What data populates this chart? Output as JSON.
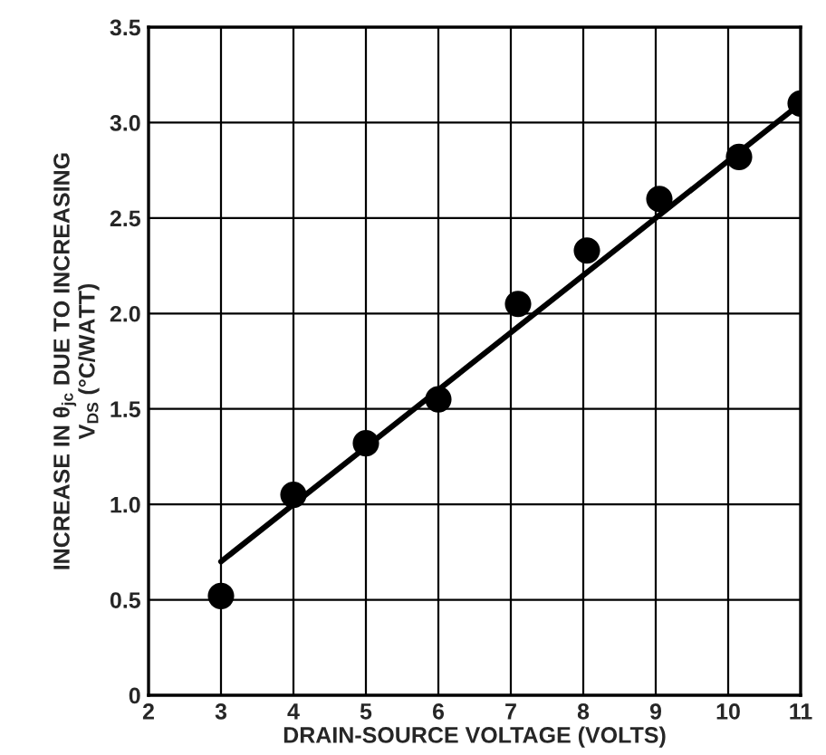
{
  "chart_data": {
    "type": "scatter",
    "xlabel": "DRAIN-SOURCE VOLTAGE (VOLTS)",
    "ylabel": "INCREASE IN θ$_{jc}$ DUE TO INCREASING\nV$_{DS}$ (°C/WATT)",
    "series": [
      {
        "color": "#000000",
        "marker": "circle",
        "x": [
          3,
          4,
          5,
          6,
          7.1,
          8.05,
          9.05,
          10.15,
          11
        ],
        "values": [
          0.52,
          1.05,
          1.32,
          1.55,
          2.05,
          2.33,
          2.6,
          2.82,
          3.1
        ]
      },
      {
        "type": "line",
        "color": "#000000",
        "marker": "none",
        "x": [
          3,
          11
        ],
        "values": [
          0.7,
          3.1
        ]
      }
    ],
    "xlim": [
      2,
      11
    ],
    "ylim": [
      0,
      3.5
    ],
    "xticks": [
      2,
      3,
      4,
      5,
      6,
      7,
      8,
      9,
      10,
      11
    ],
    "yticks": [
      0,
      0.5,
      {
        "value": 1,
        "label": "1.0"
      },
      1.5,
      {
        "value": 2,
        "label": "2.0"
      },
      2.5,
      {
        "value": 3,
        "label": "3.0"
      },
      3.5
    ],
    "grid": true,
    "legend": false
  }
}
